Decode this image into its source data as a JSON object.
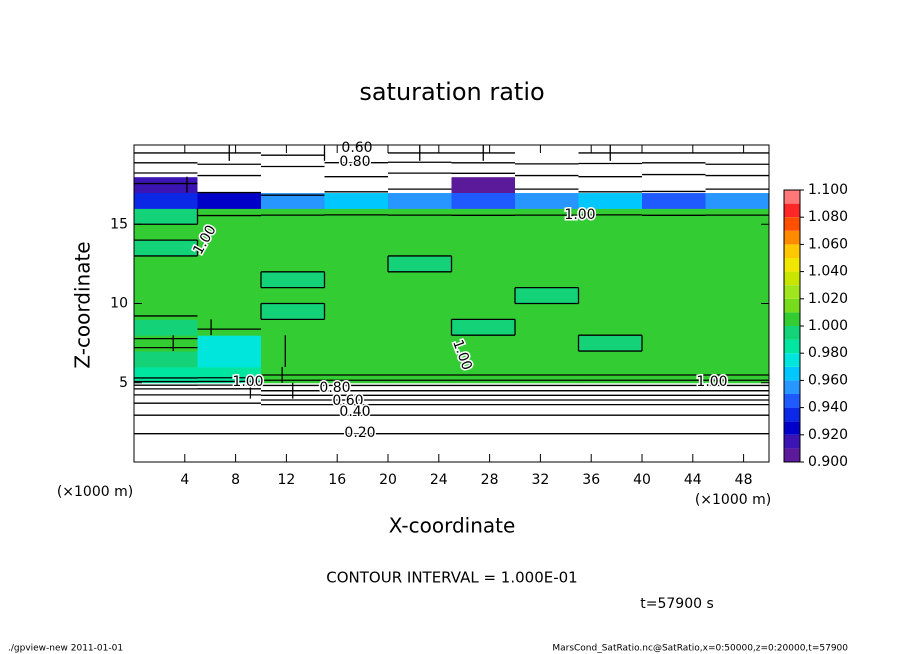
{
  "chart_data": {
    "type": "contour",
    "title": "saturation ratio",
    "xlabel": "X-coordinate",
    "ylabel": "Z-coordinate",
    "unit_label": "(×1000 m)",
    "xlim": [
      0,
      50
    ],
    "ylim": [
      0,
      20
    ],
    "xticks": [
      4,
      8,
      12,
      16,
      20,
      24,
      28,
      32,
      36,
      40,
      44,
      48
    ],
    "yticks": [
      5,
      10,
      15
    ],
    "x": [
      2.5,
      7.5,
      12.5,
      17.5,
      22.5,
      27.5,
      32.5,
      37.5,
      42.5,
      47.5
    ],
    "y": [
      0.5,
      1.5,
      2.5,
      3.5,
      4.5,
      5.5,
      6.5,
      7.5,
      8.5,
      9.5,
      10.5,
      11.5,
      12.5,
      13.5,
      14.5,
      15.5,
      16.5,
      17.5,
      18.5,
      19.5
    ],
    "z": [
      [
        0.12,
        0.12,
        0.12,
        0.12,
        0.12,
        0.12,
        0.12,
        0.12,
        0.12,
        0.12
      ],
      [
        0.18,
        0.18,
        0.18,
        0.18,
        0.18,
        0.18,
        0.18,
        0.18,
        0.18,
        0.18
      ],
      [
        0.25,
        0.25,
        0.25,
        0.25,
        0.25,
        0.25,
        0.25,
        0.25,
        0.25,
        0.25
      ],
      [
        0.36,
        0.36,
        0.36,
        0.36,
        0.36,
        0.36,
        0.36,
        0.36,
        0.36,
        0.36
      ],
      [
        0.55,
        0.55,
        0.7,
        0.7,
        0.7,
        0.7,
        0.7,
        0.7,
        0.7,
        0.7
      ],
      [
        0.985,
        0.98,
        1.004,
        1.004,
        1.004,
        1.004,
        1.004,
        1.004,
        1.004,
        1.004
      ],
      [
        0.99,
        0.97,
        1.004,
        1.004,
        1.004,
        1.004,
        1.004,
        1.004,
        1.004,
        1.004
      ],
      [
        1.004,
        0.97,
        1.004,
        1.004,
        1.004,
        1.004,
        1.004,
        0.996,
        1.004,
        1.004
      ],
      [
        0.99,
        1.004,
        1.004,
        1.004,
        1.004,
        0.996,
        1.004,
        1.004,
        1.004,
        1.004
      ],
      [
        1.004,
        1.004,
        0.996,
        1.004,
        1.004,
        1.004,
        1.004,
        1.004,
        1.004,
        1.004
      ],
      [
        1.004,
        1.004,
        1.004,
        1.004,
        1.004,
        1.004,
        0.996,
        1.004,
        1.004,
        1.004
      ],
      [
        1.004,
        1.004,
        0.996,
        1.004,
        1.004,
        1.004,
        1.004,
        1.004,
        1.004,
        1.004
      ],
      [
        1.004,
        1.004,
        1.004,
        1.004,
        0.996,
        1.004,
        1.004,
        1.004,
        1.004,
        1.004
      ],
      [
        0.996,
        1.004,
        1.004,
        1.004,
        1.004,
        1.004,
        1.004,
        1.004,
        1.004,
        1.004
      ],
      [
        1.004,
        1.004,
        1.004,
        1.004,
        1.004,
        1.004,
        1.004,
        1.004,
        1.004,
        1.004
      ],
      [
        0.996,
        1.004,
        1.004,
        1.004,
        1.004,
        1.004,
        1.004,
        1.004,
        1.004,
        1.004
      ],
      [
        0.93,
        0.92,
        0.95,
        0.96,
        0.95,
        0.94,
        0.95,
        0.96,
        0.94,
        0.95
      ],
      [
        0.91,
        0.88,
        0.8,
        0.85,
        0.88,
        0.9,
        0.88,
        0.85,
        0.87,
        0.88
      ],
      [
        0.76,
        0.74,
        0.72,
        0.75,
        0.77,
        0.76,
        0.74,
        0.75,
        0.76,
        0.74
      ],
      [
        0.6,
        0.6,
        0.58,
        0.62,
        0.6,
        0.6,
        0.61,
        0.6,
        0.6,
        0.6
      ]
    ],
    "levels": [
      0.9,
      0.91,
      0.92,
      0.93,
      0.94,
      0.95,
      0.96,
      0.97,
      0.98,
      0.99,
      1.0,
      1.01,
      1.02,
      1.03,
      1.04,
      1.05,
      1.06,
      1.07,
      1.08,
      1.09,
      1.1
    ],
    "colors": [
      "#5a1a9a",
      "#3c14b4",
      "#0000c8",
      "#0a28e6",
      "#1e5aff",
      "#2896ff",
      "#00c8ff",
      "#00e6dc",
      "#00e6a0",
      "#14d278",
      "#33cc33",
      "#78dc1e",
      "#a0e61e",
      "#c8e600",
      "#f0e600",
      "#ffc800",
      "#ff8c00",
      "#ff5000",
      "#ff2828",
      "#ff7878"
    ],
    "colorbar_ticks": [
      {
        "value": 0.9,
        "label": "0.900"
      },
      {
        "value": 0.92,
        "label": "0.920"
      },
      {
        "value": 0.94,
        "label": "0.940"
      },
      {
        "value": 0.96,
        "label": "0.960"
      },
      {
        "value": 0.98,
        "label": "0.980"
      },
      {
        "value": 1.0,
        "label": "1.000"
      },
      {
        "value": 1.02,
        "label": "1.020"
      },
      {
        "value": 1.04,
        "label": "1.040"
      },
      {
        "value": 1.06,
        "label": "1.060"
      },
      {
        "value": 1.08,
        "label": "1.080"
      },
      {
        "value": 1.1,
        "label": "1.100"
      }
    ],
    "contour_interval": {
      "value": 0.1,
      "label": "CONTOUR INTERVAL = 1.000E-01"
    },
    "contour_labels": [
      {
        "value": 0.6,
        "label": "0.60"
      },
      {
        "value": 0.8,
        "label": "0.80"
      },
      {
        "value": 1.0,
        "label": "1.00"
      },
      {
        "value": 1.0,
        "label": "1.00"
      },
      {
        "value": 1.0,
        "label": "1.00"
      },
      {
        "value": 1.0,
        "label": "1.00"
      },
      {
        "value": 0.8,
        "label": "0.80"
      },
      {
        "value": 0.6,
        "label": "0.60"
      },
      {
        "value": 0.4,
        "label": "0.40"
      },
      {
        "value": 0.2,
        "label": "0.20"
      },
      {
        "value": 1.0,
        "label": "1.00"
      }
    ],
    "time_label": "t=57900 s",
    "footer_left": "./gpview-new   2011-01-01",
    "footer_right": "MarsCond_SatRatio.nc@SatRatio,x=0:50000,z=0:20000,t=57900"
  }
}
